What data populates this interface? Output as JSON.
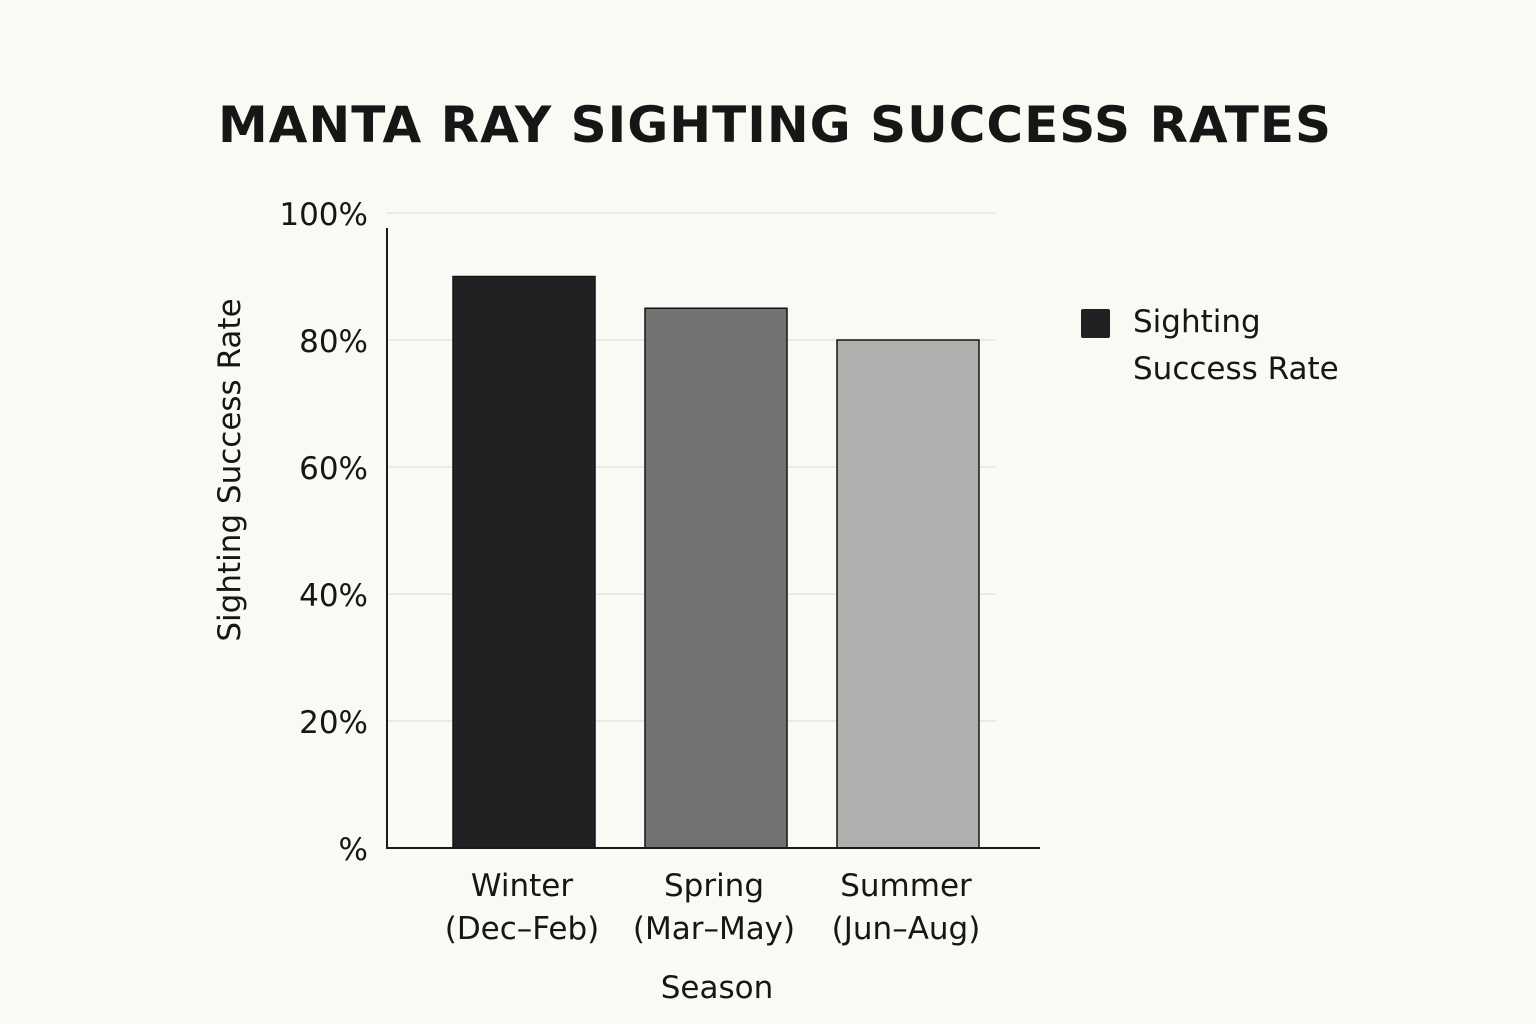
{
  "chart_data": {
    "type": "bar",
    "title": "MANTA RAY SIGHTING SUCCESS RATES",
    "xlabel": "Season",
    "ylabel": "Sighting Success Rate",
    "categories": [
      [
        "Winter",
        "(Dec–Feb)"
      ],
      [
        "Spring",
        "(Mar–May)"
      ],
      [
        "Summer",
        "(Jun–Aug)"
      ]
    ],
    "series": [
      {
        "name": "Sighting Success Rate",
        "values": [
          90,
          85,
          80
        ],
        "colors": [
          "#202122",
          "#727273",
          "#afafae"
        ]
      }
    ],
    "yticks": [
      {
        "value": 0,
        "label": "%"
      },
      {
        "value": 20,
        "label": "20%"
      },
      {
        "value": 40,
        "label": "40%"
      },
      {
        "value": 60,
        "label": "60%"
      },
      {
        "value": 80,
        "label": "80%"
      },
      {
        "value": 100,
        "label": "100%"
      }
    ],
    "ylim": [
      0,
      98
    ],
    "grid": true,
    "legend": {
      "position": "right",
      "lines": [
        "Sighting",
        "Success Rate"
      ],
      "color": "#202122"
    }
  }
}
